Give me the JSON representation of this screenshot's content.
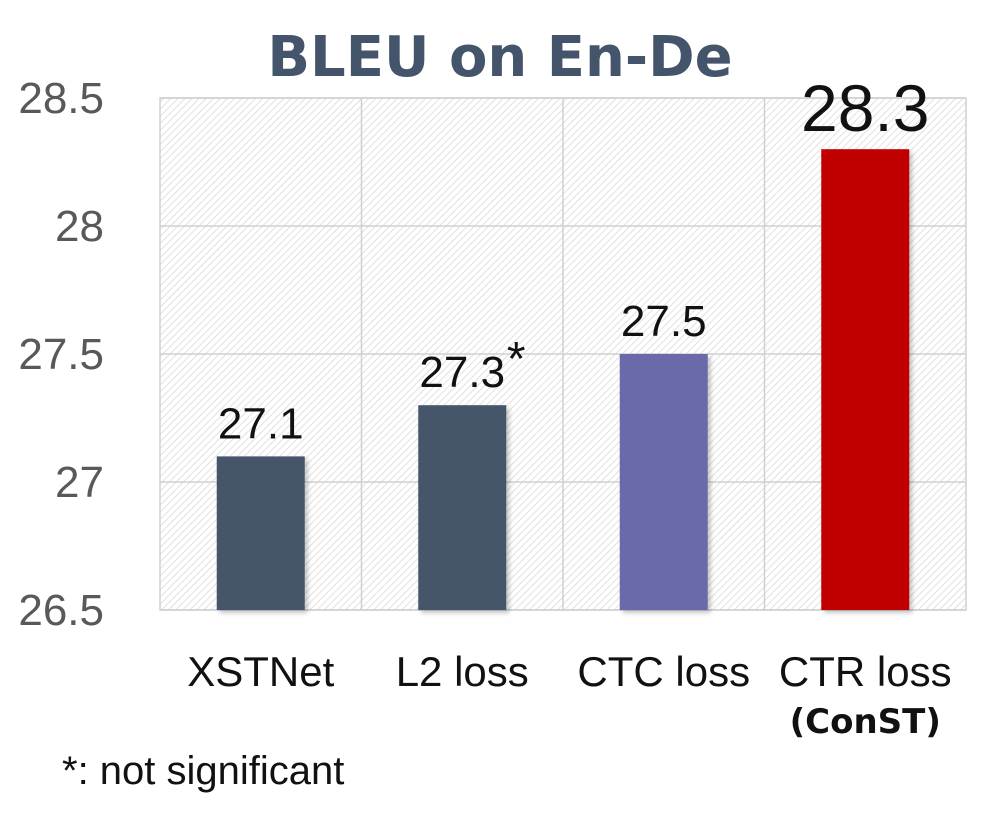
{
  "chart_data": {
    "type": "bar",
    "title": "BLEU on En-De",
    "categories": [
      "XSTNet",
      "L2 loss",
      "CTC loss",
      "CTR loss"
    ],
    "category_sublabels": [
      "",
      "",
      "",
      "(ConST)"
    ],
    "values": [
      27.1,
      27.3,
      27.5,
      28.3
    ],
    "data_labels": [
      "27.1",
      "27.3",
      "27.5",
      "28.3"
    ],
    "label_marks": [
      "",
      "*",
      "",
      ""
    ],
    "bar_colors": [
      "#44546a",
      "#44546a",
      "#6b6aa8",
      "#c00000"
    ],
    "highlight_label_color": "#c00000",
    "ylim": [
      26.5,
      28.5
    ],
    "yticks": [
      26.5,
      27,
      27.5,
      28,
      28.5
    ],
    "ytick_labels": [
      "26.5",
      "27",
      "27.5",
      "28",
      "28.5"
    ],
    "grid": true,
    "xlabel": "",
    "ylabel": ""
  },
  "footnote": "*: not significant"
}
